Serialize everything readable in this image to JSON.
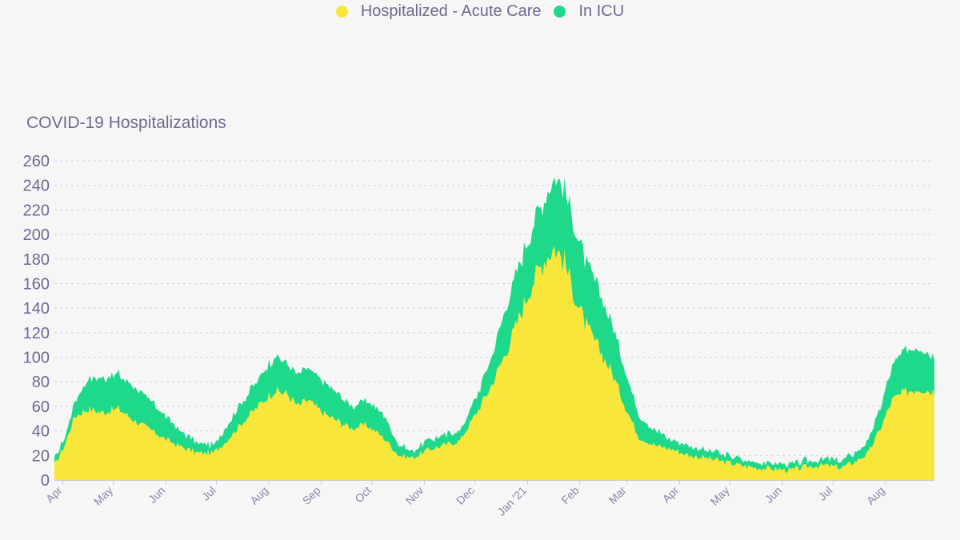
{
  "legend": {
    "items": [
      {
        "label": "Hospitalized - Acute Care",
        "color": "#f9e63a"
      },
      {
        "label": "In ICU",
        "color": "#1fd98a"
      }
    ]
  },
  "chart_title": "COVID-19 Hospitalizations",
  "chart_data": {
    "type": "area",
    "title": "COVID-19 Hospitalizations",
    "stacked": true,
    "ylim": [
      0,
      260
    ],
    "yticks": [
      0,
      20,
      40,
      60,
      80,
      100,
      120,
      140,
      160,
      180,
      200,
      220,
      240,
      260
    ],
    "grid": true,
    "legend_position": "top-center",
    "x_start": "Mar 27",
    "x_end": "Aug 31 '21",
    "xtick_labels": [
      {
        "label": "Apr",
        "day": 5
      },
      {
        "label": "May",
        "day": 35
      },
      {
        "label": "Jun",
        "day": 66
      },
      {
        "label": "Jul",
        "day": 96
      },
      {
        "label": "Aug",
        "day": 127
      },
      {
        "label": "Sep",
        "day": 158
      },
      {
        "label": "Oct",
        "day": 188
      },
      {
        "label": "Nov",
        "day": 219
      },
      {
        "label": "Dec",
        "day": 249
      },
      {
        "label": "Jan '21",
        "day": 280
      },
      {
        "label": "Feb",
        "day": 311
      },
      {
        "label": "Mar",
        "day": 339
      },
      {
        "label": "Apr",
        "day": 370
      },
      {
        "label": "May",
        "day": 400
      },
      {
        "label": "Jun",
        "day": 431
      },
      {
        "label": "Jul",
        "day": 461
      },
      {
        "label": "Aug",
        "day": 492
      }
    ],
    "total_days": 522,
    "series": [
      {
        "name": "Hospitalized - Acute Care",
        "color": "#f9e63a",
        "keyframes": [
          [
            0,
            12
          ],
          [
            6,
            28
          ],
          [
            12,
            52
          ],
          [
            20,
            58
          ],
          [
            28,
            55
          ],
          [
            38,
            58
          ],
          [
            48,
            48
          ],
          [
            58,
            40
          ],
          [
            66,
            33
          ],
          [
            75,
            27
          ],
          [
            85,
            22
          ],
          [
            94,
            22
          ],
          [
            102,
            32
          ],
          [
            112,
            48
          ],
          [
            122,
            62
          ],
          [
            130,
            73
          ],
          [
            138,
            70
          ],
          [
            144,
            60
          ],
          [
            150,
            65
          ],
          [
            156,
            58
          ],
          [
            162,
            52
          ],
          [
            168,
            48
          ],
          [
            176,
            42
          ],
          [
            184,
            45
          ],
          [
            190,
            40
          ],
          [
            196,
            33
          ],
          [
            204,
            20
          ],
          [
            212,
            18
          ],
          [
            222,
            25
          ],
          [
            230,
            28
          ],
          [
            240,
            32
          ],
          [
            250,
            55
          ],
          [
            258,
            75
          ],
          [
            266,
            100
          ],
          [
            274,
            128
          ],
          [
            282,
            158
          ],
          [
            290,
            180
          ],
          [
            296,
            190
          ],
          [
            302,
            178
          ],
          [
            310,
            142
          ],
          [
            316,
            122
          ],
          [
            322,
            108
          ],
          [
            330,
            88
          ],
          [
            338,
            60
          ],
          [
            346,
            35
          ],
          [
            356,
            28
          ],
          [
            366,
            25
          ],
          [
            376,
            20
          ],
          [
            386,
            18
          ],
          [
            396,
            15
          ],
          [
            406,
            12
          ],
          [
            416,
            10
          ],
          [
            426,
            9
          ],
          [
            436,
            8
          ],
          [
            446,
            11
          ],
          [
            456,
            12
          ],
          [
            466,
            10
          ],
          [
            474,
            15
          ],
          [
            482,
            22
          ],
          [
            490,
            45
          ],
          [
            496,
            65
          ],
          [
            504,
            72
          ],
          [
            512,
            75
          ],
          [
            521,
            72
          ]
        ]
      },
      {
        "name": "In ICU",
        "color": "#1fd98a",
        "keyframes": [
          [
            0,
            4
          ],
          [
            6,
            6
          ],
          [
            12,
            12
          ],
          [
            20,
            25
          ],
          [
            28,
            28
          ],
          [
            38,
            28
          ],
          [
            48,
            27
          ],
          [
            58,
            23
          ],
          [
            66,
            18
          ],
          [
            75,
            12
          ],
          [
            85,
            8
          ],
          [
            94,
            6
          ],
          [
            102,
            12
          ],
          [
            112,
            18
          ],
          [
            122,
            22
          ],
          [
            130,
            28
          ],
          [
            138,
            25
          ],
          [
            144,
            25
          ],
          [
            150,
            26
          ],
          [
            156,
            25
          ],
          [
            162,
            24
          ],
          [
            168,
            22
          ],
          [
            176,
            18
          ],
          [
            184,
            20
          ],
          [
            190,
            20
          ],
          [
            196,
            18
          ],
          [
            204,
            8
          ],
          [
            212,
            5
          ],
          [
            222,
            8
          ],
          [
            230,
            8
          ],
          [
            240,
            8
          ],
          [
            250,
            13
          ],
          [
            258,
            22
          ],
          [
            266,
            35
          ],
          [
            274,
            42
          ],
          [
            282,
            45
          ],
          [
            290,
            50
          ],
          [
            296,
            58
          ],
          [
            302,
            60
          ],
          [
            310,
            55
          ],
          [
            316,
            50
          ],
          [
            322,
            48
          ],
          [
            330,
            40
          ],
          [
            338,
            30
          ],
          [
            346,
            18
          ],
          [
            356,
            12
          ],
          [
            366,
            8
          ],
          [
            376,
            7
          ],
          [
            386,
            6
          ],
          [
            396,
            6
          ],
          [
            406,
            5
          ],
          [
            416,
            5
          ],
          [
            426,
            5
          ],
          [
            436,
            5
          ],
          [
            446,
            5
          ],
          [
            456,
            5
          ],
          [
            466,
            5
          ],
          [
            474,
            7
          ],
          [
            482,
            10
          ],
          [
            490,
            18
          ],
          [
            496,
            28
          ],
          [
            504,
            35
          ],
          [
            512,
            33
          ],
          [
            521,
            30
          ]
        ]
      }
    ]
  }
}
